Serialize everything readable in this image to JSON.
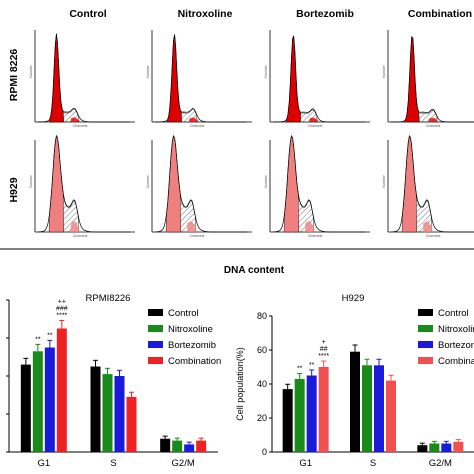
{
  "top_panel": {
    "columns": [
      "Control",
      "Nitroxoline",
      "Bortezomib",
      "Combination"
    ],
    "rows": [
      "RPMI 8226",
      "H929"
    ],
    "x_axis_label": "DNA content",
    "mini_y_label": "Number",
    "mini_x_label": "Channels"
  },
  "colors": {
    "control": "#000000",
    "nitroxoline": "#1a8a1a",
    "bortezomib": "#1a1adb",
    "combination": "#ee2222",
    "g1_peak_rpmi": "#dd0000",
    "g1_peak_h929": "#f08080"
  },
  "chart_data": [
    {
      "type": "bar",
      "title": "RPMI8226",
      "ylabel": "",
      "categories": [
        "G1",
        "S",
        "G2/M"
      ],
      "ylim": [
        0,
        80
      ],
      "series": [
        {
          "name": "Control",
          "color": "#000000",
          "values": [
            46,
            45,
            7
          ]
        },
        {
          "name": "Nitroxoline",
          "color": "#1a8a1a",
          "values": [
            53,
            41,
            6
          ]
        },
        {
          "name": "Bortezomib",
          "color": "#1a1adb",
          "values": [
            55,
            40,
            4
          ]
        },
        {
          "name": "Combination",
          "color": "#ee2222",
          "values": [
            65,
            29,
            6
          ]
        }
      ],
      "annotations": {
        "Nitroxoline": {
          "G1": "**"
        },
        "Bortezomib": {
          "G1": "**"
        },
        "Combination": {
          "G1": "++\n###\n****"
        }
      },
      "legend": "top-right"
    },
    {
      "type": "bar",
      "title": "H929",
      "ylabel": "Cell population(%)",
      "categories": [
        "G1",
        "S",
        "G2/M"
      ],
      "ylim": [
        0,
        80
      ],
      "yticks": [
        0,
        20,
        40,
        60,
        80
      ],
      "series": [
        {
          "name": "Control",
          "color": "#000000",
          "values": [
            37,
            59,
            4
          ]
        },
        {
          "name": "Nitroxoline",
          "color": "#1a8a1a",
          "values": [
            43,
            51,
            5
          ]
        },
        {
          "name": "Bortezomib",
          "color": "#1a1adb",
          "values": [
            45,
            51,
            5
          ]
        },
        {
          "name": "Combination",
          "color": "#f25050",
          "values": [
            50,
            42,
            6
          ]
        }
      ],
      "annotations": {
        "Nitroxoline": {
          "G1": "**"
        },
        "Bortezomib": {
          "G1": "**"
        },
        "Combination": {
          "G1": "+\n##\n****"
        }
      },
      "legend": "top-right"
    }
  ]
}
